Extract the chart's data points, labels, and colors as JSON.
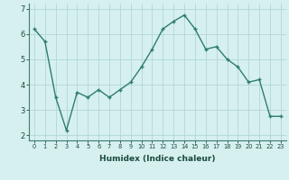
{
  "x": [
    0,
    1,
    2,
    3,
    4,
    5,
    6,
    7,
    8,
    9,
    10,
    11,
    12,
    13,
    14,
    15,
    16,
    17,
    18,
    19,
    20,
    21,
    22,
    23
  ],
  "y": [
    6.2,
    5.7,
    3.5,
    2.2,
    3.7,
    3.5,
    3.8,
    3.5,
    3.8,
    4.1,
    4.7,
    5.4,
    6.2,
    6.5,
    6.75,
    6.2,
    5.4,
    5.5,
    5.0,
    4.7,
    4.1,
    4.2,
    2.75,
    2.75
  ],
  "line_color": "#2e7d6e",
  "marker": "+",
  "marker_size": 3.5,
  "bg_color": "#d6f0ef",
  "grid_color": "#b0d8d4",
  "xlabel": "Humidex (Indice chaleur)",
  "ylim": [
    1.8,
    7.2
  ],
  "xlim": [
    -0.5,
    23.5
  ],
  "yticks": [
    2,
    3,
    4,
    5,
    6,
    7
  ],
  "xticks": [
    0,
    1,
    2,
    3,
    4,
    5,
    6,
    7,
    8,
    9,
    10,
    11,
    12,
    13,
    14,
    15,
    16,
    17,
    18,
    19,
    20,
    21,
    22,
    23
  ],
  "tick_color": "#1a4a40",
  "spine_color": "#3d7a70",
  "xlabel_fontsize": 6.5,
  "xlabel_fontweight": "bold",
  "ytick_fontsize": 6.0,
  "xtick_fontsize": 4.8
}
